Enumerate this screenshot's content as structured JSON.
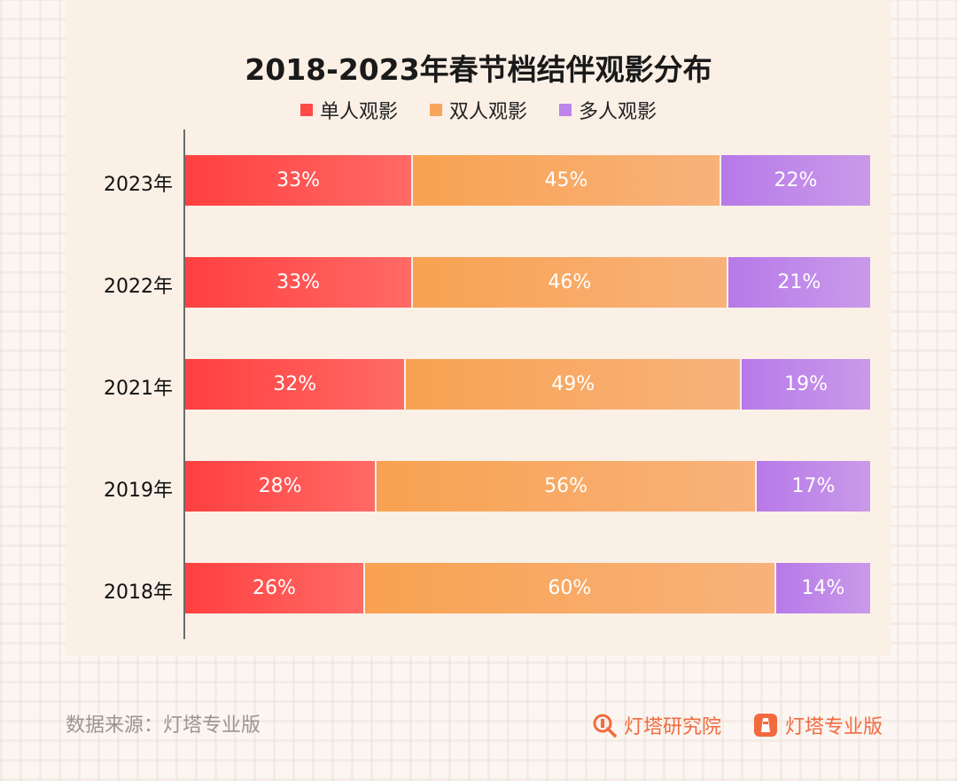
{
  "chart_data": {
    "type": "bar",
    "orientation": "horizontal",
    "stacked": true,
    "percent_stacked": true,
    "title": "2018-2023年春节档结伴观影分布",
    "categories": [
      "2023年",
      "2022年",
      "2021年",
      "2019年",
      "2018年"
    ],
    "series": [
      {
        "name": "单人观影",
        "values": [
          33,
          33,
          32,
          28,
          26
        ],
        "labels": [
          "33%",
          "33%",
          "32%",
          "28%",
          "26%"
        ],
        "color": "#ff4a48"
      },
      {
        "name": "双人观影",
        "values": [
          45,
          46,
          49,
          56,
          60
        ],
        "labels": [
          "45%",
          "46%",
          "49%",
          "56%",
          "60%"
        ],
        "color": "#f8a55c"
      },
      {
        "name": "多人观影",
        "values": [
          22,
          21,
          19,
          17,
          14
        ],
        "labels": [
          "22%",
          "21%",
          "19%",
          "17%",
          "14%"
        ],
        "color": "#bd84ea"
      }
    ],
    "xlim": [
      0,
      100
    ],
    "legend_position": "top-center"
  },
  "footer": {
    "source": "数据来源：灯塔专业版",
    "logo_research": "灯塔研究院",
    "logo_pro": "灯塔专业版"
  },
  "colors": {
    "panel": "#fbf0e6",
    "logo": "#f26a3f"
  }
}
